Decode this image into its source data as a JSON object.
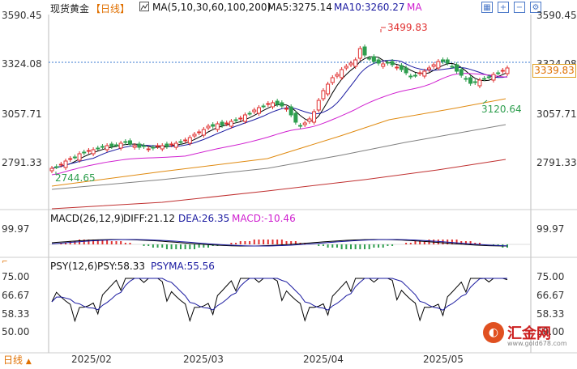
{
  "header": {
    "symbol": "现货黄金",
    "period": "【日线】",
    "ma_label": "MA(5,10,30,60,100,200)",
    "ma5": "MA5:3275.14",
    "ma10": "MA10:3260.27",
    "ma_more": "MA"
  },
  "toolbar": {
    "icons": [
      "grid-icon",
      "zoom-in-icon",
      "zoom-out-icon",
      "settings-icon"
    ]
  },
  "price_axis": {
    "left": [
      "3590.45",
      "3324.08",
      "3057.71",
      "2791.33"
    ],
    "right": [
      "3590.45",
      "3324.08",
      "3057.71",
      "2791.33"
    ],
    "current": "3339.83"
  },
  "annotations": {
    "high": "3499.83",
    "low_recent": "3120.64",
    "low_start": "2744.65"
  },
  "macd": {
    "title": "MACD(26,12,9)",
    "diff": "DIFF:21.12",
    "dea": "DEA:26.35",
    "macd": "MACD:-10.46",
    "axis_left": "99.97",
    "axis_right": "99.97"
  },
  "psy": {
    "title": "PSY(12,6)",
    "psy": "PSY:58.33",
    "psyma": "PSYMA:55.56",
    "axis_left": [
      "75.00",
      "66.67",
      "58.33",
      "50.00"
    ],
    "axis_right": [
      "75.00",
      "66.67",
      "58.33",
      "50.00"
    ]
  },
  "x_axis": [
    "2025/02",
    "2025/03",
    "2025/04",
    "2025/05"
  ],
  "footer": {
    "period": "日线"
  },
  "watermark": {
    "text": "汇金网",
    "url": "www.gold678.com"
  },
  "colors": {
    "candle_up": "#e03030",
    "candle_down": "#2e9e4e",
    "ma5": "#000000",
    "ma10": "#1a1aa0",
    "ma30": "#d020d0",
    "ma60": "#e08a10",
    "ma100": "#808080",
    "ma200": "#c03030",
    "accent": "#e07000"
  }
}
